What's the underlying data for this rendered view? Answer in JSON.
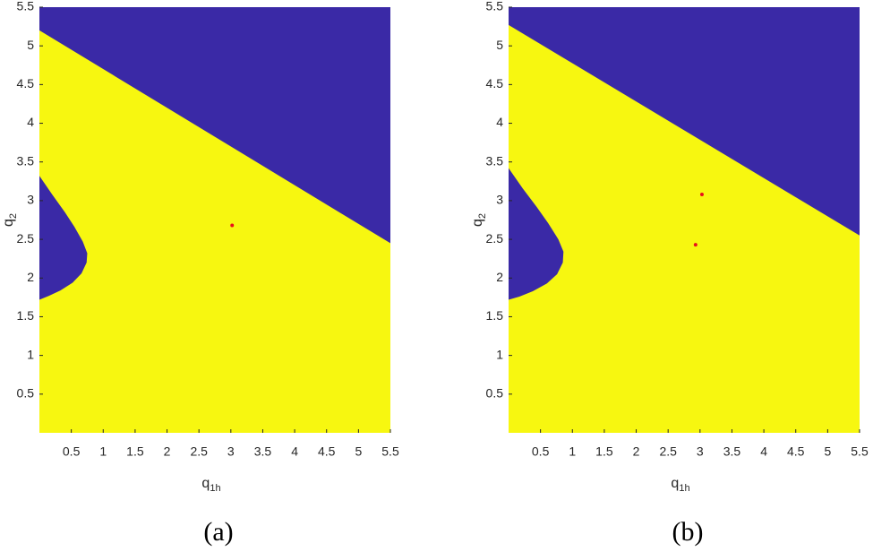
{
  "chart_data": [
    {
      "type": "region",
      "caption": "(a)",
      "xlabel": {
        "base": "q",
        "subscript": "1h"
      },
      "ylabel": {
        "base": "q",
        "subscript": "2"
      },
      "xlim": [
        0,
        5.5
      ],
      "ylim": [
        0,
        5.5
      ],
      "xticks": [
        0.5,
        1,
        1.5,
        2,
        2.5,
        3,
        3.5,
        4,
        4.5,
        5,
        5.5
      ],
      "yticks": [
        0.5,
        1,
        1.5,
        2,
        2.5,
        3,
        3.5,
        4,
        4.5,
        5,
        5.5
      ],
      "background_color": "#f7f710",
      "regions": [
        {
          "color": "#3a29a6",
          "x": [
            0,
            5.5,
            5.5,
            0
          ],
          "y": [
            5.2,
            2.45,
            5.5,
            5.5
          ]
        },
        {
          "color": "#3a29a6",
          "x": [
            0,
            0.2,
            0.4,
            0.55,
            0.68,
            0.75,
            0.74,
            0.66,
            0.52,
            0.33,
            0.15,
            0
          ],
          "y": [
            3.32,
            3.08,
            2.85,
            2.66,
            2.47,
            2.32,
            2.2,
            2.06,
            1.94,
            1.84,
            1.77,
            1.72
          ]
        }
      ],
      "points": {
        "color": "#e8101c",
        "x": [
          3.02
        ],
        "y": [
          2.68
        ]
      }
    },
    {
      "type": "region",
      "caption": "(b)",
      "xlabel": {
        "base": "q",
        "subscript": "1h"
      },
      "ylabel": {
        "base": "q",
        "subscript": "2"
      },
      "xlim": [
        0,
        5.5
      ],
      "ylim": [
        0,
        5.5
      ],
      "xticks": [
        0.5,
        1,
        1.5,
        2,
        2.5,
        3,
        3.5,
        4,
        4.5,
        5,
        5.5
      ],
      "yticks": [
        0.5,
        1,
        1.5,
        2,
        2.5,
        3,
        3.5,
        4,
        4.5,
        5,
        5.5
      ],
      "background_color": "#f7f710",
      "regions": [
        {
          "color": "#3a29a6",
          "x": [
            0,
            5.5,
            5.5,
            0
          ],
          "y": [
            5.27,
            2.55,
            5.5,
            5.5
          ]
        },
        {
          "color": "#3a29a6",
          "x": [
            0,
            0.22,
            0.44,
            0.62,
            0.78,
            0.86,
            0.85,
            0.76,
            0.6,
            0.38,
            0.17,
            0
          ],
          "y": [
            3.42,
            3.16,
            2.92,
            2.71,
            2.5,
            2.34,
            2.2,
            2.05,
            1.93,
            1.83,
            1.76,
            1.72
          ]
        }
      ],
      "points": {
        "color": "#e8101c",
        "x": [
          3.03,
          2.93
        ],
        "y": [
          3.08,
          2.43
        ]
      }
    }
  ]
}
